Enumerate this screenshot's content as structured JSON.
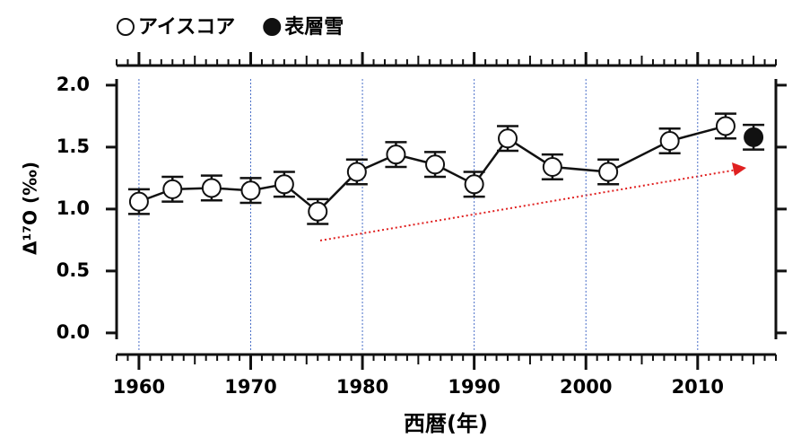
{
  "chart_data": {
    "type": "line",
    "xlabel": "西暦(年)",
    "ylabel": "Δ¹⁷O (‰)",
    "xlim": [
      1958,
      2017
    ],
    "xticks": [
      1960,
      1970,
      1980,
      1990,
      2000,
      2010
    ],
    "ylim": [
      -0.16,
      2.05
    ],
    "yticks": [
      {
        "value": 0,
        "label": "0.0"
      },
      0.5,
      {
        "value": 1,
        "label": "1.0"
      },
      1.5,
      {
        "value": 2,
        "label": "2.0"
      }
    ],
    "grid": true,
    "series": [
      {
        "name": "アイスコア",
        "color": "#ffffff",
        "line": true,
        "x": [
          1960,
          1963,
          1966.5,
          1970,
          1973,
          1976,
          1979.5,
          1983,
          1986.5,
          1990,
          1993,
          1997,
          2002,
          2007.5,
          2012.5
        ],
        "values": [
          1.06,
          1.16,
          1.17,
          1.15,
          1.2,
          0.98,
          1.3,
          1.44,
          1.36,
          1.2,
          1.57,
          1.34,
          1.3,
          1.55,
          1.67
        ],
        "errors": [
          0.1,
          0.1,
          0.1,
          0.1,
          0.1,
          0.1,
          0.1,
          0.1,
          0.1,
          0.1,
          0.1,
          0.1,
          0.1,
          0.1,
          0.1
        ]
      },
      {
        "name": "表層雪",
        "color": "#111111",
        "line": false,
        "x": [
          2015
        ],
        "values": [
          1.58
        ],
        "errors": [
          0.1
        ]
      }
    ]
  }
}
